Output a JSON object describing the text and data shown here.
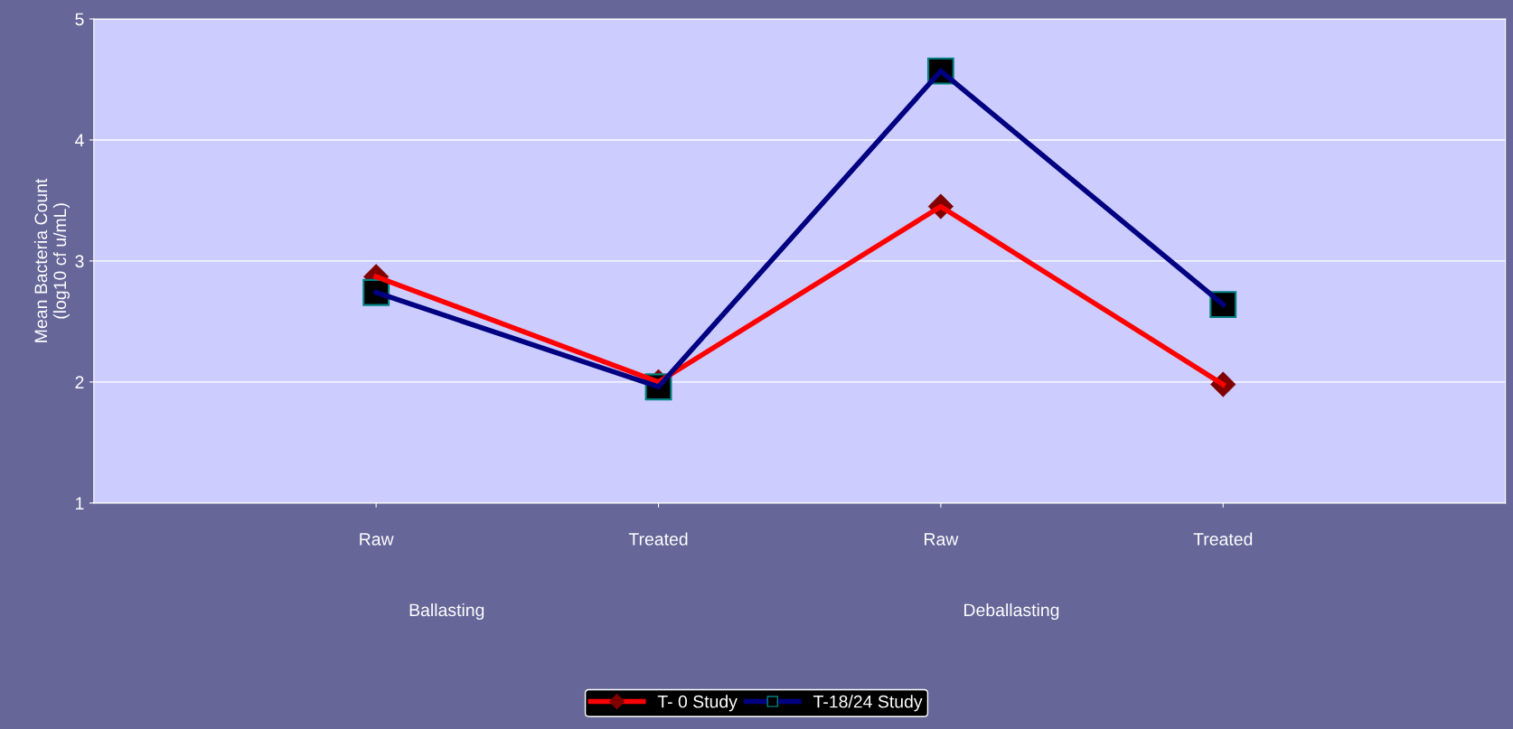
{
  "chart_data": {
    "type": "line",
    "ylabel": "Mean Bacteria Count\n(log10 cf u/mL)",
    "categories": [
      "Raw",
      "Treated",
      "Raw",
      "Treated"
    ],
    "series": [
      {
        "name": "T- 0 Study",
        "color": "#ff0000",
        "marker": "diamond",
        "values": [
          2.87,
          2.0,
          3.45,
          1.98
        ]
      },
      {
        "name": "T-18/24 Study",
        "color": "#000080",
        "marker": "square",
        "values": [
          2.74,
          1.96,
          4.57,
          2.64
        ]
      }
    ],
    "annotations": [
      "Ballasting",
      "Deballasting"
    ],
    "ylim": [
      1,
      5
    ],
    "yticks": [
      1,
      2,
      3,
      4,
      5
    ],
    "grid": "y",
    "legend": "bottom"
  }
}
